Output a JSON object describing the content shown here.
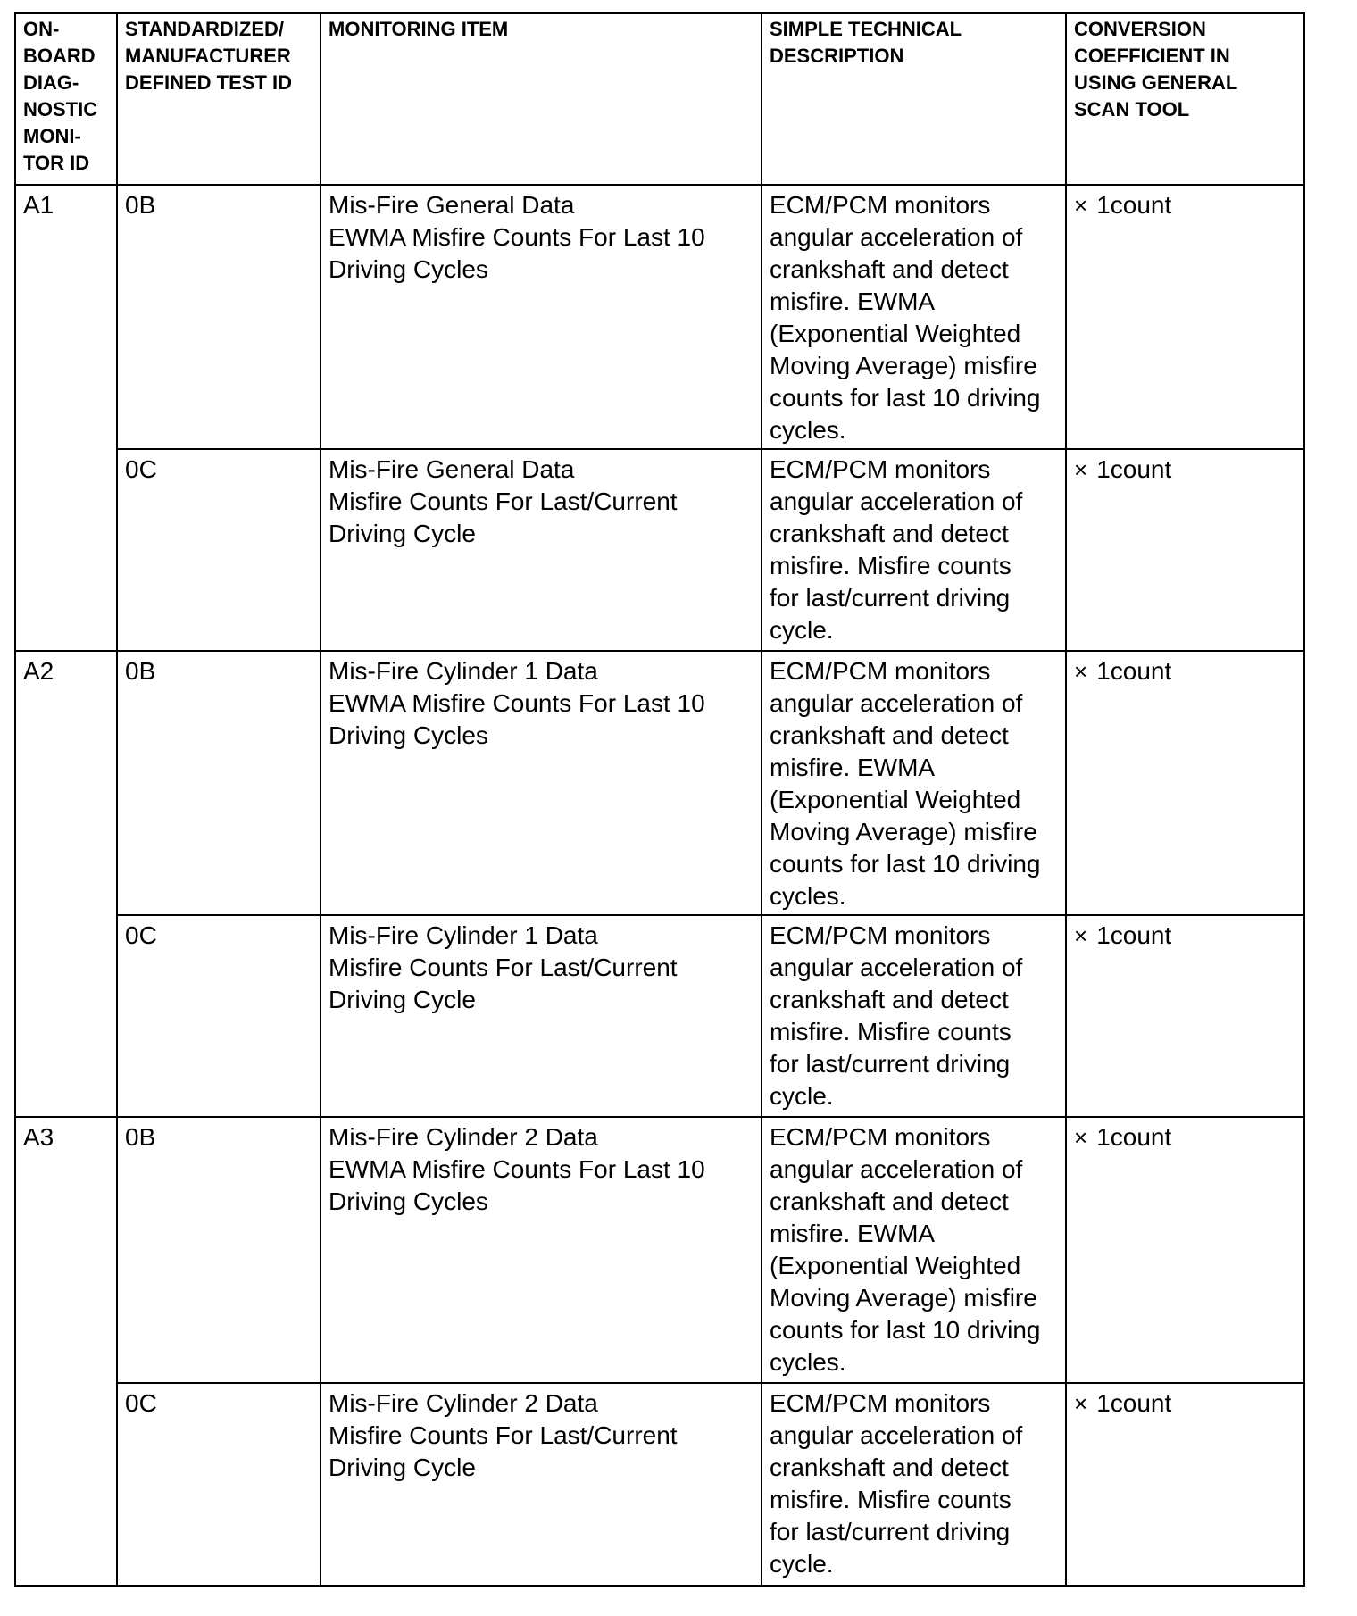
{
  "headers": [
    [
      "ON-",
      "BOARD",
      "DIAG-",
      "NOSTIC",
      "MONI-",
      "TOR ID"
    ],
    [
      "STANDARDIZED/",
      "MANUFACTURER",
      "DEFINED TEST ID"
    ],
    [
      "MONITORING ITEM"
    ],
    [
      "SIMPLE TECHNICAL",
      "DESCRIPTION"
    ],
    [
      "CONVERSION",
      "COEFFICIENT IN",
      "USING GENERAL",
      "SCAN TOOL"
    ]
  ],
  "groups": [
    {
      "monitor_id": "A1",
      "rows": [
        {
          "test_id": "0B",
          "item": [
            "Mis-Fire General Data",
            "EWMA Misfire Counts For Last 10",
            "Driving Cycles"
          ],
          "description": [
            "ECM/PCM monitors",
            "angular acceleration of",
            "crankshaft and detect",
            "misfire. EWMA",
            "(Exponential Weighted",
            "Moving Average) misfire",
            "counts for last 10 driving",
            "cycles."
          ],
          "coefficient": "1count"
        },
        {
          "test_id": "0C",
          "item": [
            "Mis-Fire General Data",
            "Misfire Counts For Last/Current",
            "Driving Cycle"
          ],
          "description": [
            "ECM/PCM monitors",
            "angular acceleration of",
            "crankshaft and detect",
            "misfire. Misfire counts",
            "for last/current driving",
            "cycle."
          ],
          "coefficient": "1count"
        }
      ]
    },
    {
      "monitor_id": "A2",
      "rows": [
        {
          "test_id": "0B",
          "item": [
            "Mis-Fire Cylinder 1 Data",
            "EWMA Misfire Counts For Last 10",
            "Driving Cycles"
          ],
          "description": [
            "ECM/PCM monitors",
            "angular acceleration of",
            "crankshaft and detect",
            "misfire. EWMA",
            "(Exponential Weighted",
            "Moving Average) misfire",
            "counts for last 10 driving",
            "cycles."
          ],
          "coefficient": "1count"
        },
        {
          "test_id": "0C",
          "item": [
            "Mis-Fire Cylinder 1 Data",
            "Misfire Counts For Last/Current",
            "Driving Cycle"
          ],
          "description": [
            "ECM/PCM monitors",
            "angular acceleration of",
            "crankshaft and detect",
            "misfire. Misfire counts",
            "for last/current driving",
            "cycle."
          ],
          "coefficient": "1count"
        }
      ]
    },
    {
      "monitor_id": "A3",
      "rows": [
        {
          "test_id": "0B",
          "item": [
            "Mis-Fire Cylinder 2 Data",
            "EWMA Misfire Counts For Last 10",
            "Driving Cycles"
          ],
          "description": [
            "ECM/PCM monitors",
            "angular acceleration of",
            "crankshaft and detect",
            "misfire. EWMA",
            "(Exponential Weighted",
            "Moving Average) misfire",
            "counts for last 10 driving",
            "cycles."
          ],
          "coefficient": "1count"
        },
        {
          "test_id": "0C",
          "item": [
            "Mis-Fire Cylinder 2 Data",
            "Misfire Counts For Last/Current",
            "Driving Cycle"
          ],
          "description": [
            "ECM/PCM monitors",
            "angular acceleration of",
            "crankshaft and detect",
            "misfire. Misfire counts",
            "for last/current driving",
            "cycle."
          ],
          "coefficient": "1count"
        }
      ]
    }
  ],
  "multiply_symbol": "×"
}
